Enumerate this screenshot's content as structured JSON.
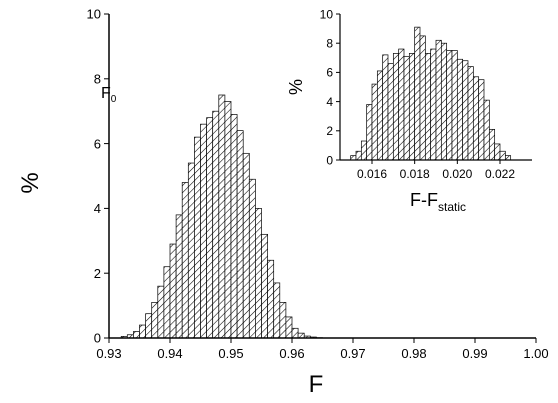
{
  "chart_data": [
    {
      "type": "bar",
      "role": "main",
      "xlabel": "F",
      "ylabel": "%",
      "xlim": [
        0.93,
        1.0
      ],
      "ylim": [
        0,
        10
      ],
      "xticks": [
        "0.93",
        "0.94",
        "0.95",
        "0.96",
        "0.97",
        "0.98",
        "0.99",
        "1.00"
      ],
      "yticks": [
        "0",
        "2",
        "4",
        "6",
        "8",
        "10"
      ],
      "annotation": {
        "text": "F",
        "subscript": "0",
        "x": 0.93,
        "line_to": 7.1
      },
      "bin_width": 0.001,
      "bin_starts": [
        0.932,
        0.933,
        0.934,
        0.935,
        0.936,
        0.937,
        0.938,
        0.939,
        0.94,
        0.941,
        0.942,
        0.943,
        0.944,
        0.945,
        0.946,
        0.947,
        0.948,
        0.949,
        0.95,
        0.951,
        0.952,
        0.953,
        0.954,
        0.955,
        0.956,
        0.957,
        0.958,
        0.959,
        0.96,
        0.961,
        0.962,
        0.963,
        0.964
      ],
      "values": [
        0.05,
        0.1,
        0.2,
        0.4,
        0.75,
        1.1,
        1.6,
        2.2,
        2.9,
        3.8,
        4.8,
        5.4,
        6.2,
        6.6,
        6.8,
        7.0,
        7.5,
        7.3,
        6.9,
        6.4,
        5.7,
        4.9,
        4.0,
        3.2,
        2.4,
        1.7,
        1.1,
        0.65,
        0.3,
        0.15,
        0.06,
        0.03,
        0.01
      ],
      "hatch": "diagonal",
      "grid": false
    },
    {
      "type": "bar",
      "role": "inset",
      "xlabel": "F-F",
      "xlabel_subscript": "static",
      "ylabel": "%",
      "xlim": [
        0.0145,
        0.0235
      ],
      "ylim": [
        0,
        10
      ],
      "xticks": [
        "0.016",
        "0.018",
        "0.020",
        "0.022"
      ],
      "xtick_values": [
        0.016,
        0.018,
        0.02,
        0.022
      ],
      "yticks": [
        "0",
        "2",
        "4",
        "6",
        "8",
        "10"
      ],
      "bin_width": 0.00025,
      "bin_starts": [
        0.015,
        0.01525,
        0.0155,
        0.01575,
        0.016,
        0.01625,
        0.0165,
        0.01675,
        0.017,
        0.01725,
        0.0175,
        0.01775,
        0.018,
        0.01825,
        0.0185,
        0.01875,
        0.019,
        0.01925,
        0.0195,
        0.01975,
        0.02,
        0.02025,
        0.0205,
        0.02075,
        0.021,
        0.02125,
        0.0215,
        0.02175,
        0.022,
        0.02225
      ],
      "values": [
        0.3,
        0.6,
        1.3,
        3.8,
        5.2,
        6.1,
        7.2,
        6.6,
        7.3,
        7.6,
        7.1,
        7.3,
        9.1,
        8.5,
        7.3,
        7.6,
        8.2,
        8.0,
        7.5,
        7.5,
        6.9,
        6.8,
        6.4,
        5.7,
        5.5,
        4.1,
        2.1,
        1.1,
        0.6,
        0.3
      ],
      "hatch": "diagonal",
      "grid": false
    }
  ]
}
